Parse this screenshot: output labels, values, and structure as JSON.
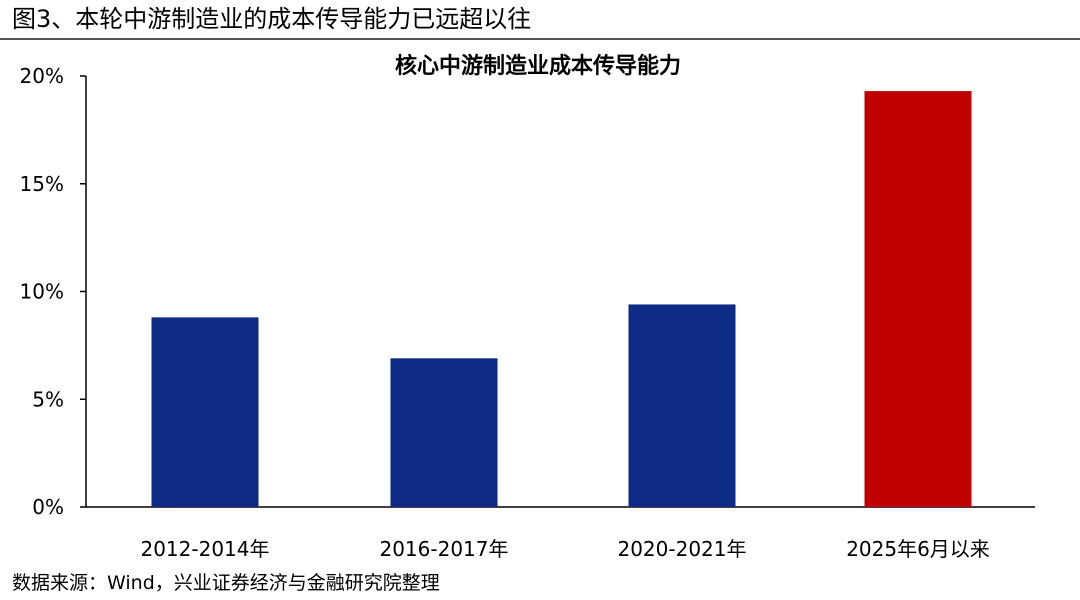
{
  "figure_title": "图3、本轮中游制造业的成本传导能力已远超以往",
  "source": "数据来源：Wind，兴业证券经济与金融研究院整理",
  "chart_data": {
    "type": "bar",
    "title": "核心中游制造业成本传导能力",
    "categories": [
      "2012-2014年",
      "2016-2017年",
      "2020-2021年",
      "2025年6月以来"
    ],
    "values": [
      8.8,
      6.9,
      9.4,
      19.3
    ],
    "unit": "%",
    "ylim": [
      0,
      20
    ],
    "yticks": [
      0,
      5,
      10,
      15,
      20
    ],
    "ytick_labels": [
      "0%",
      "5%",
      "10%",
      "15%",
      "20%"
    ],
    "grid": false,
    "colors": [
      "#0d2a85",
      "#0d2a85",
      "#0d2a85",
      "#c00000"
    ],
    "xlabel": "",
    "ylabel": ""
  }
}
